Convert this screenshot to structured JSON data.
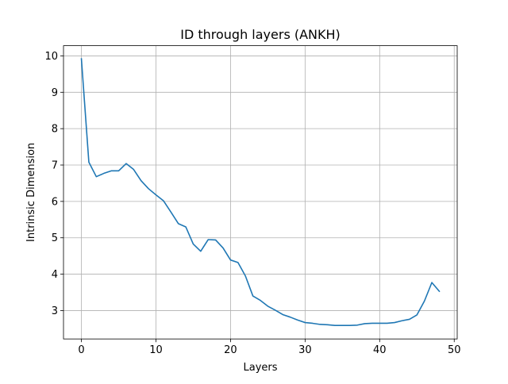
{
  "chart_data": {
    "type": "line",
    "title": "ID through layers (ANKH)",
    "xlabel": "Layers",
    "ylabel": "Intrinsic Dimension",
    "xlim": [
      -2.4,
      50.4
    ],
    "ylim": [
      2.22,
      10.28
    ],
    "xticks": [
      0,
      10,
      20,
      30,
      40,
      50
    ],
    "yticks": [
      3,
      4,
      5,
      6,
      7,
      8,
      9,
      10
    ],
    "xtick_labels": [
      "0",
      "10",
      "20",
      "30",
      "40",
      "50"
    ],
    "ytick_labels": [
      "3",
      "4",
      "5",
      "6",
      "7",
      "8",
      "9",
      "10"
    ],
    "grid": true,
    "series": [
      {
        "color": "#1f77b4",
        "x": [
          0,
          1,
          2,
          3,
          4,
          5,
          6,
          7,
          8,
          9,
          10,
          11,
          12,
          13,
          14,
          15,
          16,
          17,
          18,
          19,
          20,
          21,
          22,
          23,
          24,
          25,
          26,
          27,
          28,
          29,
          30,
          31,
          32,
          33,
          34,
          35,
          36,
          37,
          38,
          39,
          40,
          41,
          42,
          43,
          44,
          45,
          46,
          47,
          48
        ],
        "y": [
          9.92,
          7.08,
          6.68,
          6.77,
          6.84,
          6.84,
          7.04,
          6.88,
          6.57,
          6.35,
          6.18,
          6.02,
          5.71,
          5.39,
          5.3,
          4.83,
          4.63,
          4.95,
          4.94,
          4.72,
          4.39,
          4.32,
          3.95,
          3.4,
          3.28,
          3.12,
          3.01,
          2.89,
          2.82,
          2.74,
          2.67,
          2.65,
          2.62,
          2.61,
          2.59,
          2.59,
          2.59,
          2.6,
          2.64,
          2.65,
          2.65,
          2.65,
          2.67,
          2.72,
          2.76,
          2.88,
          3.26,
          3.77,
          3.53
        ]
      }
    ]
  }
}
